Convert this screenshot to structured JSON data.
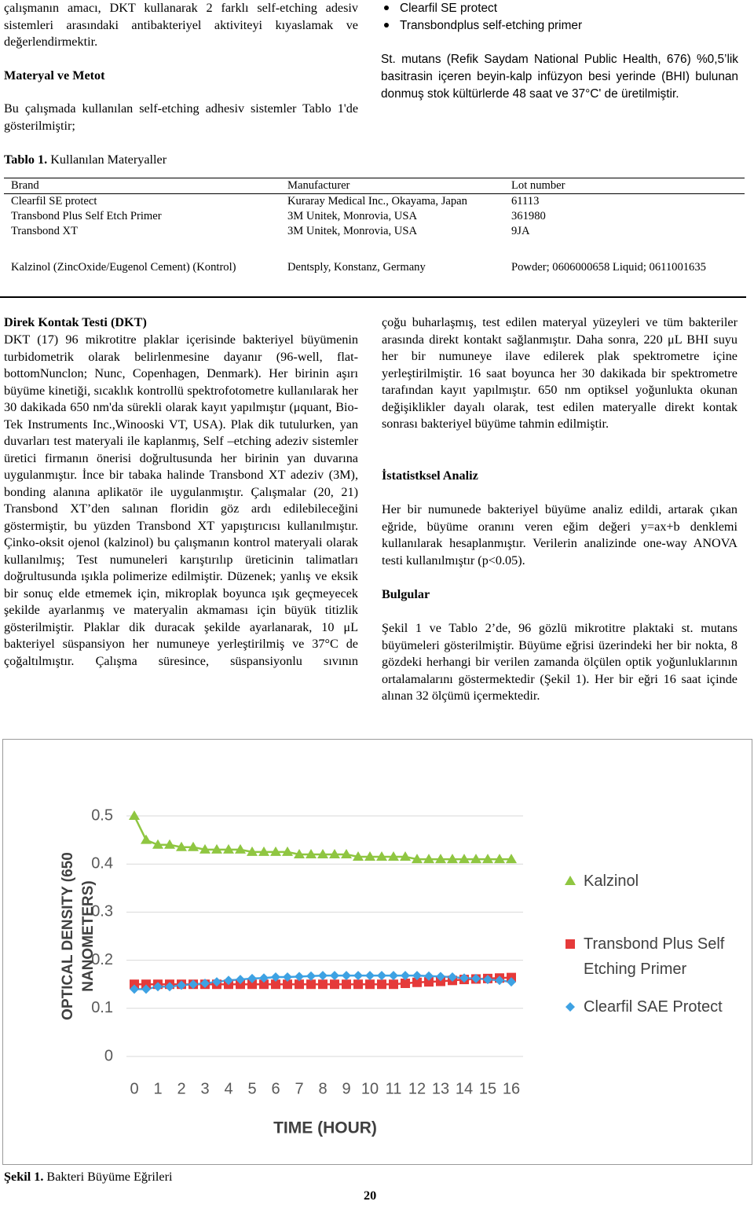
{
  "intro": {
    "text": "çalışmanın amacı, DKT kullanarak 2 farklı self-etching adesiv sistemleri arasındaki antibakteriyel aktiviteyi kıyaslamak ve değerlendirmektir."
  },
  "materials": {
    "heading": "Materyal ve Metot",
    "text": "Bu çalışmada kullanılan self-etching adhesiv sistemler Tablo 1'de gösterilmiştir;"
  },
  "adhesives": {
    "items": [
      "Clearfil SE protect",
      "Transbondplus self-etching primer"
    ],
    "text": "St. mutans (Refik Saydam National Public Health, 676) %0,5’lik basitrasin içeren beyin-kalp infüzyon besi yerinde (BHI) bulunan donmuş stok kültürlerde 48 saat ve 37°C' de üretilmiştir."
  },
  "table": {
    "label": "Tablo 1.",
    "title": "Kullanılan Materyaller",
    "header": [
      "Brand",
      "Manufacturer",
      "Lot number"
    ],
    "rows": [
      [
        "Clearfil SE protect",
        "Kuraray Medical Inc., Okayama, Japan",
        "61113"
      ],
      [
        "Transbond Plus Self Etch Primer",
        "3M Unitek, Monrovia, USA",
        "361980"
      ],
      [
        "Transbond XT",
        "3M Unitek, Monrovia, USA",
        "9JA"
      ],
      [
        "Kalzinol (ZincOxide/Eugenol Cement) (Kontrol)",
        "Dentsply, Konstanz, Germany",
        "Powder; 0606000658 Liquid; 0611001635"
      ]
    ]
  },
  "dkt": {
    "heading": "Direk Kontak Testi (DKT)",
    "text": "DKT (17) 96 mikrotitre plaklar içerisinde bakteriyel büyümenin turbidometrik olarak belirlenmesine dayanır (96-well, flat-bottomNunclon; Nunc, Copenhagen, Denmark). Her birinin aşırı büyüme kinetiği, sıcaklık kontrollü spektrofotometre kullanılarak her 30 dakikada 650 nm'da sürekli olarak kayıt yapılmıştır (μquant, Bio-Tek Instruments Inc.,Winooski VT, USA). Plak dik tutulurken, yan duvarları test materyali ile kaplanmış, Self –etching adeziv sistemler üretici firmanın önerisi doğrultusunda her birinin yan duvarına uygulanmıştır. İnce bir tabaka halinde Transbond XT adeziv (3M), bonding alanına aplikatör ile uygulanmıştır. Çalışmalar (20, 21) Transbond XT’den salınan floridin göz ardı edilebileceğini göstermiştir, bu yüzden Transbond XT yapıştırıcısı kullanılmıştır. Çinko-oksit ojenol (kalzinol) bu çalışmanın kontrol materyali olarak kullanılmış; Test numuneleri karıştırılıp üreticinin talimatları doğrultusunda ışıkla polimerize edilmiştir. Düzenek; yanlış ve eksik bir sonuç elde etmemek için, mikroplak boyunca ışık geçmeyecek şekilde ayarlanmış ve materyalin akmaması için büyük titizlik gösterilmiştir. Plaklar dik duracak şekilde ayarlanarak, 10 μL bakteriyel süspansiyon her numuneye yerleştirilmiş ve 37°C de çoğaltılmıştır. Çalışma süresince, süspansiyonlu sıvının"
  },
  "dkt_continued": {
    "text": "çoğu buharlaşmış, test edilen materyal yüzeyleri ve tüm bakteriler arasında direkt kontakt sağlanmıştır. Daha sonra, 220 μL BHI suyu her bir numuneye ilave edilerek plak spektrometre içine yerleştirilmiştir. 16 saat boyunca her 30 dakikada bir spektrometre tarafından kayıt yapılmıştır. 650 nm optiksel yoğunlukta okunan değişiklikler dayalı olarak, test edilen materyalle direkt kontak sonrası bakteriyel büyüme tahmin edilmiştir."
  },
  "statistics": {
    "heading": "İstatistksel Analiz",
    "text": "Her bir numunede bakteriyel büyüme analiz edildi, artarak çıkan eğride, büyüme oranını veren eğim değeri y=ax+b denklemi kullanılarak hesaplanmıştır. Verilerin analizinde one-way ANOVA testi kullanılmıştır (p<0.05)."
  },
  "results": {
    "heading": "Bulgular",
    "text": "Şekil 1 ve Tablo 2’de, 96 gözlü mikrotitre plaktaki st. mutans büyümeleri gösterilmiştir. Büyüme eğrisi üzerindeki her bir nokta, 8 gözdeki herhangi bir verilen zamanda ölçülen optik yoğunluklarının ortalamalarını göstermektedir (Şekil 1). Her bir eğri 16 saat içinde alınan 32 ölçümü içermektedir."
  },
  "figure": {
    "label": "Şekil 1.",
    "caption": "Bakteri Büyüme Eğrileri"
  },
  "page_number": "20",
  "chart_data": {
    "type": "line",
    "x_label": "TIME (HOUR)",
    "y_label": "OPTICAL DENSITY (650 NANOMETERS)",
    "x": [
      0,
      0.5,
      1,
      1.5,
      2,
      2.5,
      3,
      3.5,
      4,
      4.5,
      5,
      5.5,
      6,
      6.5,
      7,
      7.5,
      8,
      8.5,
      9,
      9.5,
      10,
      10.5,
      11,
      11.5,
      12,
      12.5,
      13,
      13.5,
      14,
      14.5,
      15,
      15.5,
      16
    ],
    "xlim": [
      0,
      16
    ],
    "xticks": [
      0,
      1,
      2,
      3,
      4,
      5,
      6,
      7,
      8,
      9,
      10,
      11,
      12,
      13,
      14,
      15,
      16
    ],
    "ylim": [
      0,
      0.5
    ],
    "yticks": [
      0,
      0.1,
      0.2,
      0.3,
      0.4,
      0.5
    ],
    "grid": true,
    "legend": "right",
    "series": [
      {
        "name": "Kalzinol",
        "color": "#8fc641",
        "marker": "triangle",
        "values": [
          0.5,
          0.45,
          0.44,
          0.44,
          0.435,
          0.435,
          0.43,
          0.43,
          0.43,
          0.43,
          0.425,
          0.425,
          0.425,
          0.425,
          0.42,
          0.42,
          0.42,
          0.42,
          0.42,
          0.415,
          0.415,
          0.415,
          0.415,
          0.415,
          0.41,
          0.41,
          0.41,
          0.41,
          0.41,
          0.41,
          0.41,
          0.41,
          0.41
        ]
      },
      {
        "name": "Transbond Plus Self Etching Primer",
        "color": "#e53a3a",
        "marker": "square",
        "values": [
          0.15,
          0.15,
          0.15,
          0.15,
          0.15,
          0.15,
          0.15,
          0.15,
          0.15,
          0.15,
          0.15,
          0.15,
          0.15,
          0.15,
          0.15,
          0.15,
          0.15,
          0.15,
          0.15,
          0.15,
          0.15,
          0.15,
          0.15,
          0.152,
          0.154,
          0.155,
          0.156,
          0.158,
          0.16,
          0.161,
          0.162,
          0.163,
          0.164
        ]
      },
      {
        "name": "Clearfil SAE Protect",
        "color": "#3ea2e3",
        "marker": "diamond",
        "values": [
          0.14,
          0.14,
          0.145,
          0.145,
          0.148,
          0.15,
          0.152,
          0.155,
          0.158,
          0.16,
          0.162,
          0.163,
          0.165,
          0.165,
          0.166,
          0.167,
          0.168,
          0.168,
          0.168,
          0.168,
          0.168,
          0.168,
          0.168,
          0.168,
          0.168,
          0.167,
          0.166,
          0.165,
          0.163,
          0.162,
          0.16,
          0.158,
          0.155
        ]
      }
    ]
  }
}
